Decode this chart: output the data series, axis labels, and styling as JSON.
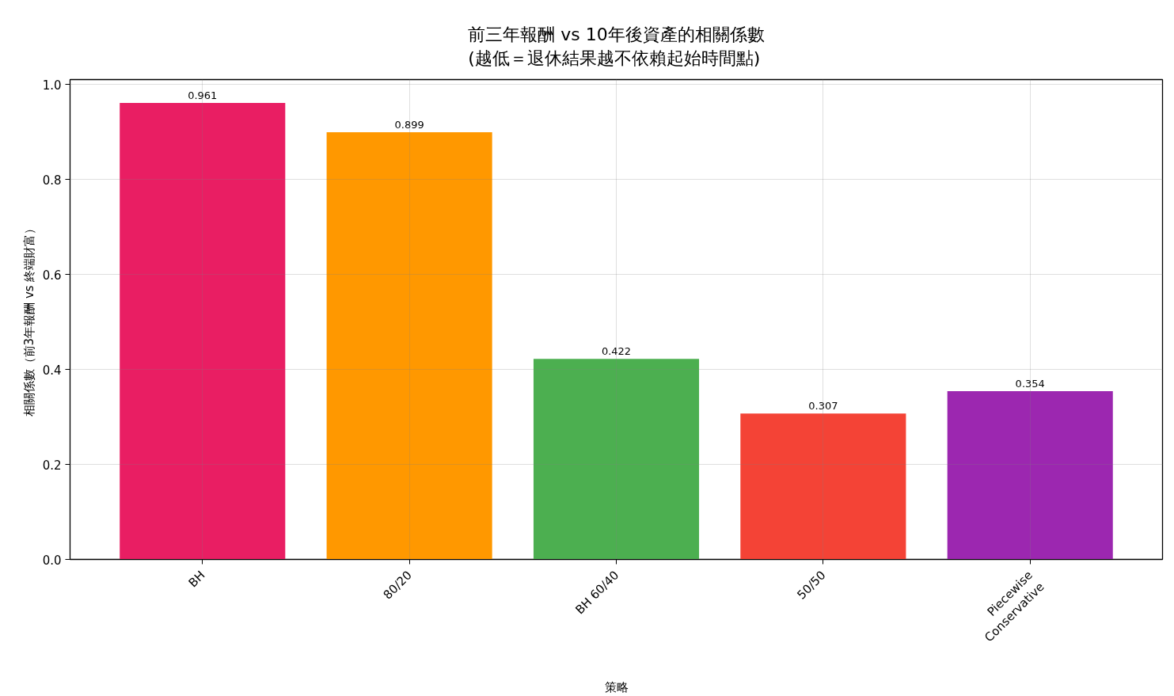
{
  "chart_data": {
    "type": "bar",
    "title": "前三年報酬 vs 10年後資產的相關係數\n(越低＝退休結果越不依賴起始時間點)",
    "xlabel": "策略",
    "ylabel": "相關係數（前3年報酬 vs 終端財富）",
    "categories": [
      "BH",
      "80/20",
      "BH 60/40",
      "50/50",
      "Piecewise\nConservative"
    ],
    "values": [
      0.961,
      0.899,
      0.422,
      0.307,
      0.354
    ],
    "colors": [
      "#e91e63",
      "#ff9800",
      "#4caf50",
      "#f44336",
      "#9c27b0"
    ],
    "ylim": [
      0,
      1.01
    ],
    "yticks": [
      {
        "value": 0,
        "label": "0.0"
      },
      0.2,
      0.4,
      0.6,
      0.8,
      {
        "value": 1,
        "label": "1.0"
      }
    ],
    "grid": true,
    "data_labels": true
  }
}
